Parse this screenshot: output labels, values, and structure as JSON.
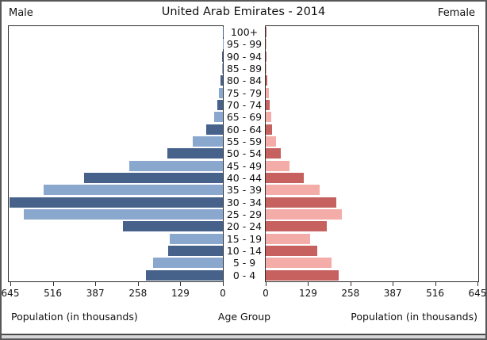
{
  "window": {
    "frame_color": "#57575a",
    "bottom_strip_color": "#d6d6d6",
    "bottom_line_color": "#4a4a4d",
    "background": "#ffffff"
  },
  "chart_data": {
    "type": "bar",
    "variant": "population-pyramid",
    "title": "United Arab Emirates - 2014",
    "left_header": "Male",
    "right_header": "Female",
    "xlabel_left": "Population (in thousands)",
    "center_axis_label": "Age Group",
    "xlabel_right": "Population (in thousands)",
    "units": "thousands",
    "axis_ticks": [
      0,
      129,
      258,
      387,
      516,
      645
    ],
    "axis_max": 645,
    "grid": false,
    "legend": "none",
    "bar_color_pattern": "rows alternate dark/light, bottom row (0 - 4) dark",
    "age_groups_top_to_bottom": [
      "100+",
      "95 - 99",
      "90 - 94",
      "85 - 89",
      "80 - 84",
      "75 - 79",
      "70 - 74",
      "65 - 69",
      "60 - 64",
      "55 - 59",
      "50 - 54",
      "45 - 49",
      "40 - 44",
      "35 - 39",
      "30 - 34",
      "25 - 29",
      "20 - 24",
      "15 - 19",
      "10 - 14",
      "5 - 9",
      "0 - 4"
    ],
    "series": [
      {
        "name": "Male",
        "side": "left",
        "values_top_to_bottom": [
          0.3,
          0.7,
          1.5,
          3,
          7,
          11,
          18,
          26,
          50,
          92,
          169,
          284,
          422,
          544,
          648,
          604,
          303,
          161,
          166,
          211,
          234
        ]
      },
      {
        "name": "Female",
        "side": "right",
        "values_top_to_bottom": [
          0.3,
          0.6,
          1.2,
          2.5,
          4,
          9,
          13,
          16,
          20,
          32,
          47,
          72,
          117,
          165,
          214,
          232,
          185,
          135,
          157,
          200,
          223
        ]
      }
    ],
    "colors": {
      "male_dark": "#46628B",
      "male_light": "#8AA7CE",
      "female_dark": "#C6615F",
      "female_light": "#F3ACA8"
    }
  }
}
